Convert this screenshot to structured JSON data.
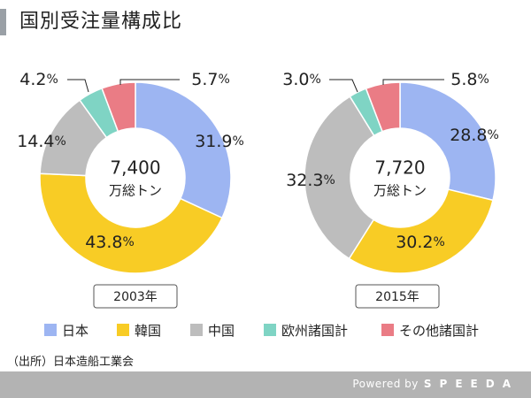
{
  "title": "国別受注量構成比",
  "source": "（出所）日本造船工業会",
  "footer": {
    "powered_by": "Powered by",
    "brand": "SPEEDA"
  },
  "legend": [
    {
      "label": "日本",
      "color": "#9db5f2"
    },
    {
      "label": "韓国",
      "color": "#f8cc25"
    },
    {
      "label": "中国",
      "color": "#bdbdbd"
    },
    {
      "label": "欧州諸国計",
      "color": "#7fd4c4"
    },
    {
      "label": "その他諸国計",
      "color": "#ea7c85"
    }
  ],
  "chart_data": [
    {
      "type": "pie",
      "year_label": "2003年",
      "total_value": "7,400",
      "total_unit": "万総トン",
      "categories": [
        "日本",
        "韓国",
        "中国",
        "欧州諸国計",
        "その他諸国計"
      ],
      "values": [
        31.9,
        43.8,
        14.4,
        4.2,
        5.7
      ],
      "labels": [
        "31.9%",
        "43.8%",
        "14.4%",
        "4.2%",
        "5.7%"
      ],
      "colors": [
        "#9db5f2",
        "#f8cc25",
        "#bdbdbd",
        "#7fd4c4",
        "#ea7c85"
      ]
    },
    {
      "type": "pie",
      "year_label": "2015年",
      "total_value": "7,720",
      "total_unit": "万総トン",
      "categories": [
        "日本",
        "韓国",
        "中国",
        "欧州諸国計",
        "その他諸国計"
      ],
      "values": [
        28.8,
        30.2,
        32.3,
        3.0,
        5.8
      ],
      "labels": [
        "28.8%",
        "30.2%",
        "32.3%",
        "3.0%",
        "5.8%"
      ],
      "colors": [
        "#9db5f2",
        "#f8cc25",
        "#bdbdbd",
        "#7fd4c4",
        "#ea7c85"
      ]
    }
  ]
}
